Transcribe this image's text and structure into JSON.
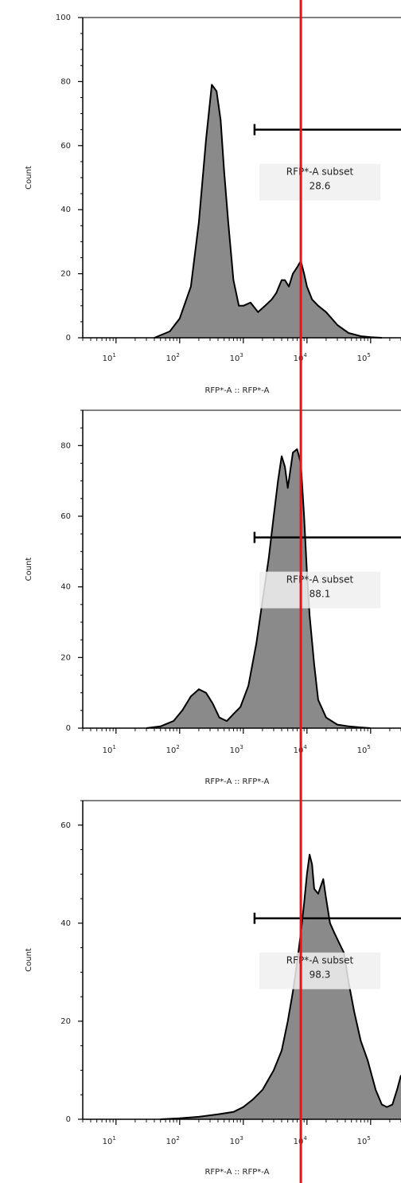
{
  "colors": {
    "histogram_fill": "#8a8a8a",
    "histogram_outline": "#000000",
    "gate_label_box": "#f0f0f0",
    "reference_line": "#e81414",
    "axis": "#000000"
  },
  "chart_data": [
    {
      "type": "area",
      "xlabel": "RFP*-A :: RFP*-A",
      "ylabel": "Count",
      "x_scale": "log",
      "xlim": [
        3,
        300000
      ],
      "ylim": [
        0,
        100
      ],
      "x_ticks": [
        {
          "base": "10",
          "exp": "1"
        },
        {
          "base": "10",
          "exp": "2"
        },
        {
          "base": "10",
          "exp": "3"
        },
        {
          "base": "10",
          "exp": "4"
        },
        {
          "base": "10",
          "exp": "5"
        }
      ],
      "y_ticks": [
        "0",
        "20",
        "40",
        "60",
        "80",
        "100"
      ],
      "x": [
        40,
        70,
        100,
        150,
        200,
        260,
        320,
        380,
        440,
        500,
        580,
        700,
        850,
        1000,
        1300,
        1700,
        2200,
        2800,
        3300,
        4000,
        4500,
        5200,
        6000,
        7000,
        8000,
        9000,
        10000,
        12000,
        15000,
        20000,
        30000,
        45000,
        70000,
        100000,
        150000
      ],
      "y": [
        0,
        2,
        6,
        16,
        36,
        62,
        79,
        77,
        68,
        52,
        36,
        18,
        10,
        10,
        11,
        8,
        10,
        12,
        14,
        18,
        18,
        16,
        20,
        22,
        24,
        20,
        16,
        12,
        10,
        8,
        4,
        1.5,
        0.5,
        0.2,
        0
      ],
      "gate": {
        "label": "RFP*-A subset",
        "value": "28.6",
        "x_start": 1500,
        "x_end": 300000,
        "y": 65
      },
      "reference_x": 8000
    },
    {
      "type": "area",
      "xlabel": "RFP*-A :: RFP*-A",
      "ylabel": "Count",
      "x_scale": "log",
      "xlim": [
        3,
        300000
      ],
      "ylim": [
        0,
        90
      ],
      "x_ticks": [
        {
          "base": "10",
          "exp": "1"
        },
        {
          "base": "10",
          "exp": "2"
        },
        {
          "base": "10",
          "exp": "3"
        },
        {
          "base": "10",
          "exp": "4"
        },
        {
          "base": "10",
          "exp": "5"
        }
      ],
      "y_ticks": [
        "0",
        "20",
        "40",
        "60",
        "80"
      ],
      "x": [
        30,
        50,
        80,
        110,
        150,
        200,
        260,
        330,
        420,
        550,
        700,
        900,
        1200,
        1600,
        2000,
        2500,
        3000,
        3500,
        4000,
        4500,
        5000,
        6000,
        7000,
        8000,
        9000,
        10000,
        11000,
        13000,
        15000,
        20000,
        30000,
        45000,
        70000,
        100000
      ],
      "y": [
        0,
        0.5,
        2,
        5,
        9,
        11,
        10,
        7,
        3,
        2,
        4,
        6,
        12,
        24,
        36,
        48,
        60,
        70,
        77,
        74,
        68,
        78,
        79,
        75,
        60,
        44,
        32,
        18,
        8,
        3,
        1,
        0.5,
        0.2,
        0
      ],
      "gate": {
        "label": "RFP*-A subset",
        "value": "88.1",
        "x_start": 1500,
        "x_end": 300000,
        "y": 54
      },
      "reference_x": 8000
    },
    {
      "type": "area",
      "xlabel": "RFP*-A :: RFP*-A",
      "ylabel": "Count",
      "x_scale": "log",
      "xlim": [
        3,
        300000
      ],
      "ylim": [
        0,
        65
      ],
      "x_ticks": [
        {
          "base": "10",
          "exp": "1"
        },
        {
          "base": "10",
          "exp": "2"
        },
        {
          "base": "10",
          "exp": "3"
        },
        {
          "base": "10",
          "exp": "4"
        },
        {
          "base": "10",
          "exp": "5"
        }
      ],
      "y_ticks": [
        "0",
        "20",
        "40",
        "60"
      ],
      "x": [
        50,
        100,
        200,
        400,
        700,
        1000,
        1400,
        2000,
        3000,
        4000,
        5000,
        6000,
        7000,
        8000,
        9000,
        10000,
        11000,
        12000,
        13000,
        15000,
        18000,
        20000,
        23000,
        27000,
        32000,
        38000,
        45000,
        55000,
        70000,
        90000,
        120000,
        150000,
        180000,
        220000,
        260000,
        300000
      ],
      "y": [
        0,
        0.2,
        0.5,
        1,
        1.5,
        2.5,
        4,
        6,
        10,
        14,
        20,
        26,
        32,
        38,
        44,
        50,
        54,
        52,
        47,
        46,
        49,
        45,
        40,
        38,
        36,
        34,
        28,
        22,
        16,
        12,
        6,
        3,
        2.5,
        3,
        6,
        9
      ],
      "gate": {
        "label": "RFP*-A subset",
        "value": "98.3",
        "x_start": 1500,
        "x_end": 300000,
        "y": 41
      },
      "reference_x": 8000
    }
  ]
}
